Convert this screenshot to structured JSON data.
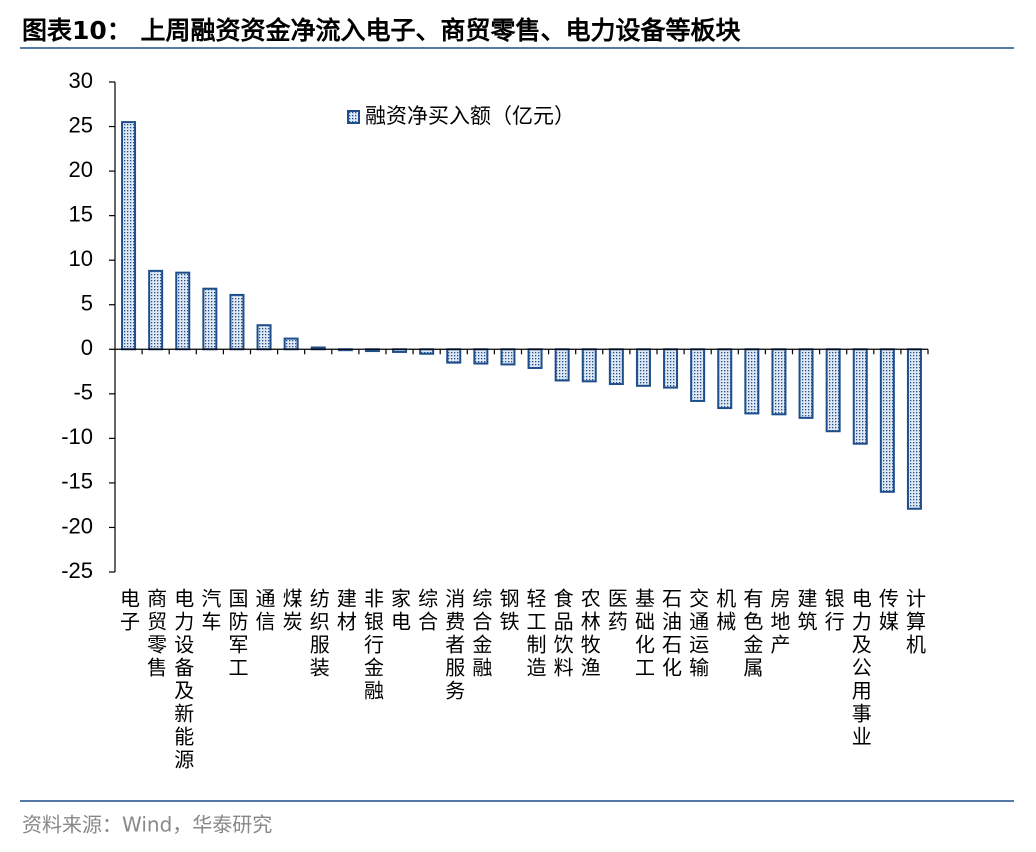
{
  "title": "图表10：  上周融资资金净流入电子、商贸零售、电力设备等板块",
  "source": "资料来源：Wind，华泰研究",
  "chart_data": {
    "type": "bar",
    "categories": [
      "电子",
      "商贸零售",
      "电力设备及新能源",
      "汽车",
      "国防军工",
      "通信",
      "煤炭",
      "纺织服装",
      "建材",
      "非银行金融",
      "家电",
      "综合",
      "消费者服务",
      "综合金融",
      "钢铁",
      "轻工制造",
      "食品饮料",
      "农林牧渔",
      "医药",
      "基础化工",
      "石油石化",
      "交通运输",
      "机械",
      "有色金属",
      "房地产",
      "建筑",
      "银行",
      "电力及公用事业",
      "传媒",
      "计算机"
    ],
    "series": [
      {
        "name": "融资净买入额（亿元）",
        "color": "#1f4e8c",
        "values": [
          25.5,
          8.8,
          8.6,
          6.8,
          6.1,
          2.7,
          1.2,
          0.2,
          -0.1,
          -0.2,
          -0.3,
          -0.5,
          -1.5,
          -1.6,
          -1.7,
          -2.1,
          -3.5,
          -3.6,
          -3.9,
          -4.1,
          -4.3,
          -5.8,
          -6.6,
          -7.2,
          -7.3,
          -7.7,
          -9.2,
          -10.6,
          -16.0,
          -17.9
        ]
      }
    ],
    "ylim": [
      -25,
      30
    ],
    "yticks": [
      -25,
      -20,
      -15,
      -10,
      -5,
      0,
      5,
      10,
      15,
      20,
      25,
      30
    ],
    "legend": "top",
    "grid": false
  }
}
